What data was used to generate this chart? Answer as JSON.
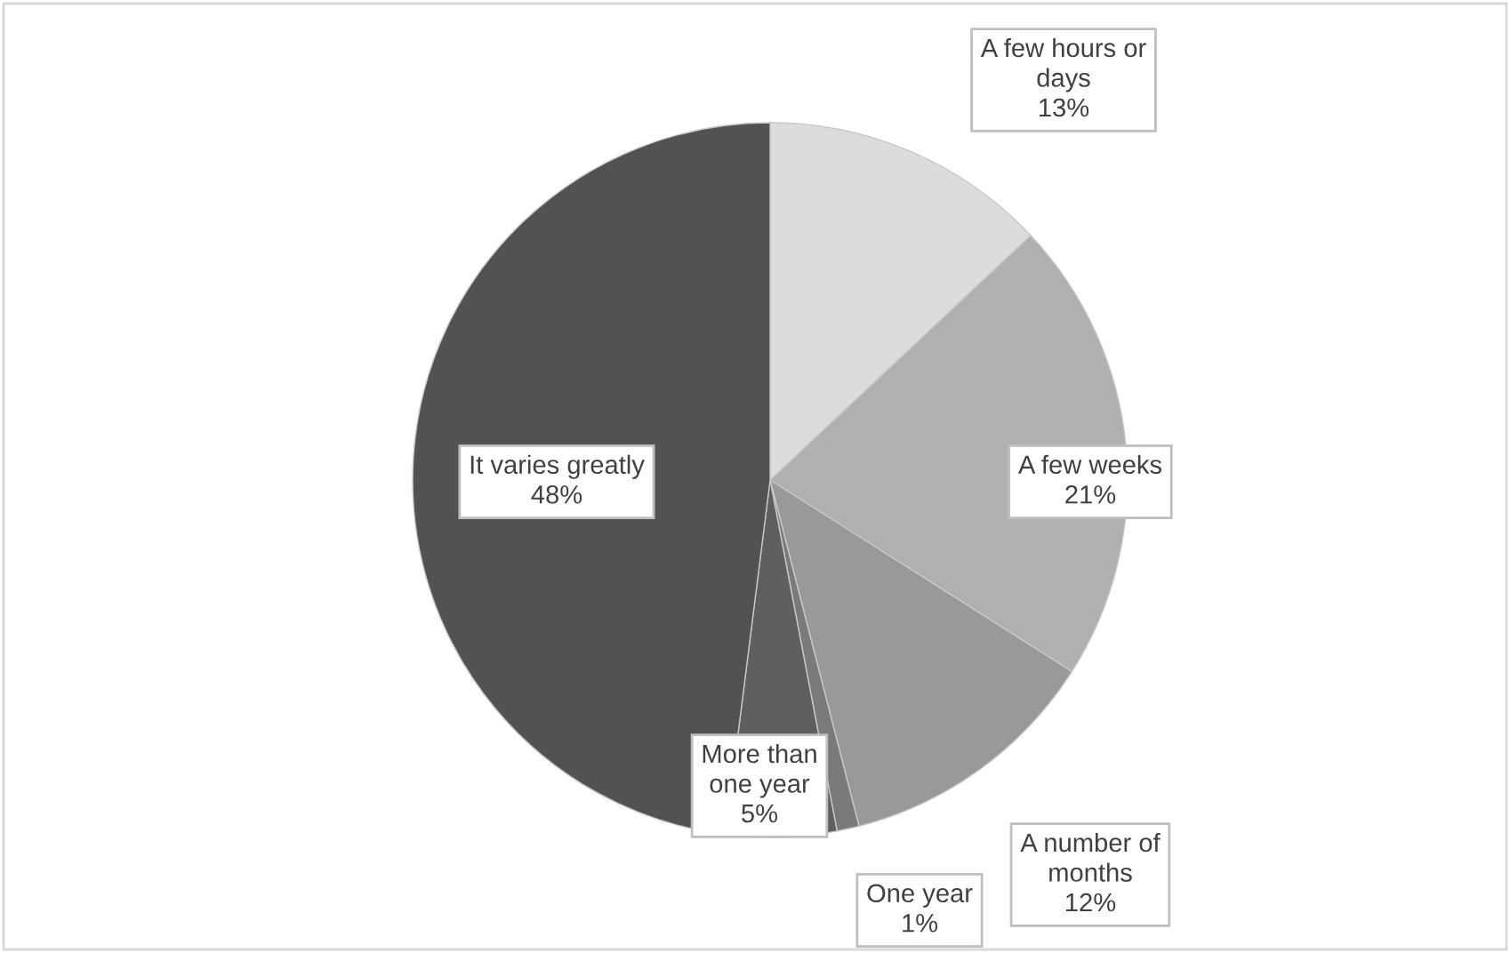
{
  "chart_data": {
    "type": "pie",
    "categories": [
      "A few hours or days",
      "A few weeks",
      "A number of months",
      "One year",
      "More than one year",
      "It varies greatly"
    ],
    "values": [
      13,
      21,
      12,
      1,
      5,
      48
    ],
    "value_labels": [
      "13%",
      "21%",
      "12%",
      "1%",
      "5%",
      "48%"
    ],
    "colors": [
      "#dcdcdc",
      "#b0b0b0",
      "#999999",
      "#7a7a7a",
      "#5f5f5f",
      "#525252"
    ],
    "legend": false
  }
}
